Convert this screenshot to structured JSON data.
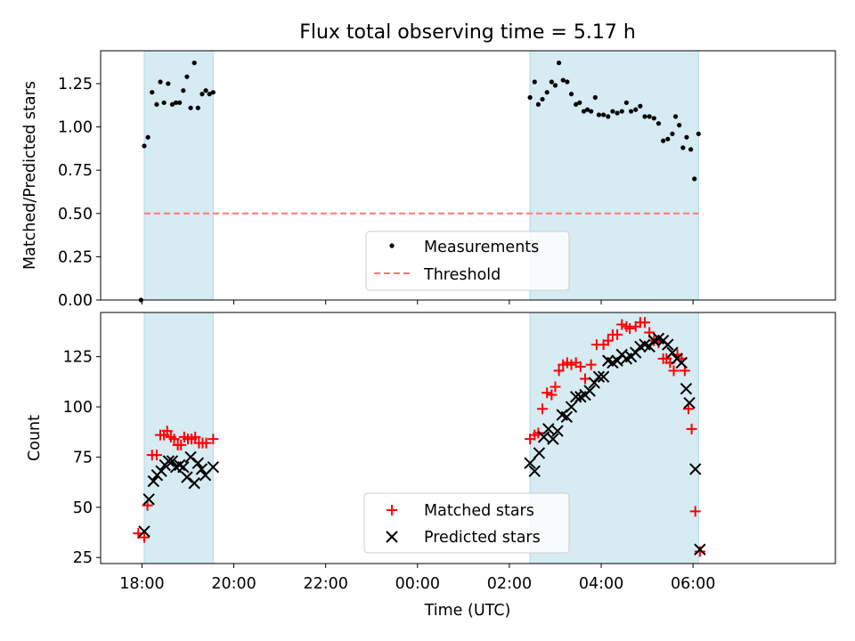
{
  "title": "Flux total observing time = 5.17 h",
  "xlabel": "Time (UTC)",
  "x_ticks": [
    "18:00",
    "20:00",
    "22:00",
    "00:00",
    "02:00",
    "04:00",
    "06:00"
  ],
  "x_tick_hours": [
    0,
    2,
    4,
    6,
    8,
    10,
    12
  ],
  "x_range_hours_after_18": [
    -0.9,
    15.1
  ],
  "shaded_intervals_hours_after_18": [
    [
      0.05,
      1.55
    ],
    [
      8.45,
      12.12
    ]
  ],
  "shade_color": "#add8e6",
  "chart_data": [
    {
      "type": "scatter",
      "ylabel": "Matched/Predicted stars",
      "ylim": [
        0,
        1.44
      ],
      "y_ticks": [
        "0.00",
        "0.25",
        "0.50",
        "0.75",
        "1.00",
        "1.25"
      ],
      "y_tick_values": [
        0,
        0.25,
        0.5,
        0.75,
        1.0,
        1.25
      ],
      "threshold": 0.5,
      "legend_placement": "lower center",
      "series": [
        {
          "name": "Measurements",
          "color": "#000000",
          "marker": "dot",
          "points": [
            [
              -0.02,
              0.0
            ],
            [
              0.05,
              0.89
            ],
            [
              0.13,
              0.94
            ],
            [
              0.22,
              1.2
            ],
            [
              0.32,
              1.13
            ],
            [
              0.4,
              1.26
            ],
            [
              0.48,
              1.14
            ],
            [
              0.57,
              1.25
            ],
            [
              0.66,
              1.13
            ],
            [
              0.74,
              1.14
            ],
            [
              0.82,
              1.14
            ],
            [
              0.9,
              1.21
            ],
            [
              0.98,
              1.29
            ],
            [
              1.06,
              1.11
            ],
            [
              1.14,
              1.37
            ],
            [
              1.22,
              1.11
            ],
            [
              1.31,
              1.19
            ],
            [
              1.39,
              1.21
            ],
            [
              1.47,
              1.19
            ],
            [
              1.55,
              1.2
            ],
            [
              8.45,
              1.17
            ],
            [
              8.55,
              1.26
            ],
            [
              8.63,
              1.13
            ],
            [
              8.72,
              1.16
            ],
            [
              8.82,
              1.2
            ],
            [
              8.92,
              1.26
            ],
            [
              9.0,
              1.24
            ],
            [
              9.08,
              1.37
            ],
            [
              9.17,
              1.27
            ],
            [
              9.26,
              1.26
            ],
            [
              9.35,
              1.19
            ],
            [
              9.45,
              1.13
            ],
            [
              9.53,
              1.14
            ],
            [
              9.62,
              1.09
            ],
            [
              9.7,
              1.1
            ],
            [
              9.78,
              1.09
            ],
            [
              9.87,
              1.17
            ],
            [
              9.95,
              1.07
            ],
            [
              10.05,
              1.07
            ],
            [
              10.15,
              1.06
            ],
            [
              10.25,
              1.09
            ],
            [
              10.35,
              1.08
            ],
            [
              10.45,
              1.09
            ],
            [
              10.55,
              1.14
            ],
            [
              10.65,
              1.09
            ],
            [
              10.75,
              1.1
            ],
            [
              10.85,
              1.12
            ],
            [
              10.95,
              1.06
            ],
            [
              11.05,
              1.06
            ],
            [
              11.15,
              1.05
            ],
            [
              11.25,
              1.02
            ],
            [
              11.35,
              0.92
            ],
            [
              11.45,
              0.93
            ],
            [
              11.55,
              0.96
            ],
            [
              11.62,
              1.06
            ],
            [
              11.7,
              1.01
            ],
            [
              11.78,
              0.88
            ],
            [
              11.86,
              0.94
            ],
            [
              11.95,
              0.87
            ],
            [
              12.03,
              0.7
            ],
            [
              12.12,
              0.96
            ]
          ]
        },
        {
          "name": "Threshold",
          "color": "#ff7777",
          "style": "dashed",
          "points": [
            [
              0.05,
              0.5
            ],
            [
              12.12,
              0.5
            ]
          ]
        }
      ]
    },
    {
      "type": "scatter",
      "ylabel": "Count",
      "ylim": [
        22,
        147
      ],
      "y_ticks": [
        "25",
        "50",
        "75",
        "100",
        "125"
      ],
      "y_tick_values": [
        25,
        50,
        75,
        100,
        125
      ],
      "legend_placement": "lower center",
      "series": [
        {
          "name": "Matched stars",
          "color": "#ff0000",
          "marker": "plus",
          "points": [
            [
              -0.08,
              37
            ],
            [
              0.05,
              35
            ],
            [
              0.12,
              51
            ],
            [
              0.22,
              76
            ],
            [
              0.32,
              76
            ],
            [
              0.4,
              86
            ],
            [
              0.48,
              86
            ],
            [
              0.55,
              88
            ],
            [
              0.63,
              85
            ],
            [
              0.7,
              84
            ],
            [
              0.78,
              81
            ],
            [
              0.85,
              81
            ],
            [
              0.92,
              85
            ],
            [
              1.0,
              84
            ],
            [
              1.08,
              84
            ],
            [
              1.16,
              85
            ],
            [
              1.24,
              82
            ],
            [
              1.32,
              82
            ],
            [
              1.4,
              82
            ],
            [
              1.55,
              84
            ],
            [
              8.45,
              84
            ],
            [
              8.55,
              86
            ],
            [
              8.63,
              87
            ],
            [
              8.72,
              99
            ],
            [
              8.82,
              107
            ],
            [
              8.92,
              106
            ],
            [
              9.0,
              110
            ],
            [
              9.08,
              118
            ],
            [
              9.17,
              121
            ],
            [
              9.26,
              122
            ],
            [
              9.35,
              121
            ],
            [
              9.45,
              122
            ],
            [
              9.55,
              120
            ],
            [
              9.65,
              114
            ],
            [
              9.78,
              121
            ],
            [
              9.9,
              131
            ],
            [
              10.05,
              131
            ],
            [
              10.15,
              133
            ],
            [
              10.25,
              136
            ],
            [
              10.35,
              136
            ],
            [
              10.45,
              141
            ],
            [
              10.55,
              140
            ],
            [
              10.62,
              139
            ],
            [
              10.75,
              140
            ],
            [
              10.85,
              142
            ],
            [
              10.95,
              142
            ],
            [
              11.05,
              137
            ],
            [
              11.15,
              133
            ],
            [
              11.25,
              132
            ],
            [
              11.35,
              124
            ],
            [
              11.42,
              124
            ],
            [
              11.5,
              122
            ],
            [
              11.58,
              118
            ],
            [
              11.66,
              126
            ],
            [
              11.75,
              124
            ],
            [
              11.82,
              118
            ],
            [
              11.9,
              99
            ],
            [
              11.97,
              89
            ],
            [
              12.05,
              48
            ],
            [
              12.15,
              28
            ]
          ]
        },
        {
          "name": "Predicted stars",
          "color": "#000000",
          "marker": "x",
          "points": [
            [
              0.05,
              38
            ],
            [
              0.15,
              54
            ],
            [
              0.25,
              63
            ],
            [
              0.33,
              66
            ],
            [
              0.42,
              68
            ],
            [
              0.5,
              71
            ],
            [
              0.58,
              73
            ],
            [
              0.66,
              73
            ],
            [
              0.74,
              70
            ],
            [
              0.82,
              71
            ],
            [
              0.9,
              70
            ],
            [
              0.98,
              65
            ],
            [
              1.06,
              75
            ],
            [
              1.14,
              62
            ],
            [
              1.22,
              72
            ],
            [
              1.3,
              69
            ],
            [
              1.38,
              66
            ],
            [
              1.55,
              70
            ],
            [
              8.45,
              72
            ],
            [
              8.55,
              68
            ],
            [
              8.65,
              77
            ],
            [
              8.75,
              85
            ],
            [
              8.85,
              89
            ],
            [
              8.95,
              84
            ],
            [
              9.05,
              88
            ],
            [
              9.15,
              96
            ],
            [
              9.25,
              95
            ],
            [
              9.35,
              100
            ],
            [
              9.45,
              105
            ],
            [
              9.55,
              105
            ],
            [
              9.65,
              106
            ],
            [
              9.75,
              108
            ],
            [
              9.85,
              112
            ],
            [
              9.95,
              115
            ],
            [
              10.05,
              115
            ],
            [
              10.15,
              123
            ],
            [
              10.25,
              122
            ],
            [
              10.35,
              123
            ],
            [
              10.45,
              126
            ],
            [
              10.55,
              124
            ],
            [
              10.65,
              125
            ],
            [
              10.75,
              127
            ],
            [
              10.85,
              130
            ],
            [
              10.95,
              131
            ],
            [
              11.05,
              130
            ],
            [
              11.15,
              133
            ],
            [
              11.25,
              134
            ],
            [
              11.35,
              133
            ],
            [
              11.45,
              131
            ],
            [
              11.55,
              127
            ],
            [
              11.65,
              124
            ],
            [
              11.75,
              122
            ],
            [
              11.85,
              109
            ],
            [
              11.92,
              102
            ],
            [
              12.05,
              69
            ],
            [
              12.15,
              29
            ]
          ]
        }
      ]
    }
  ]
}
